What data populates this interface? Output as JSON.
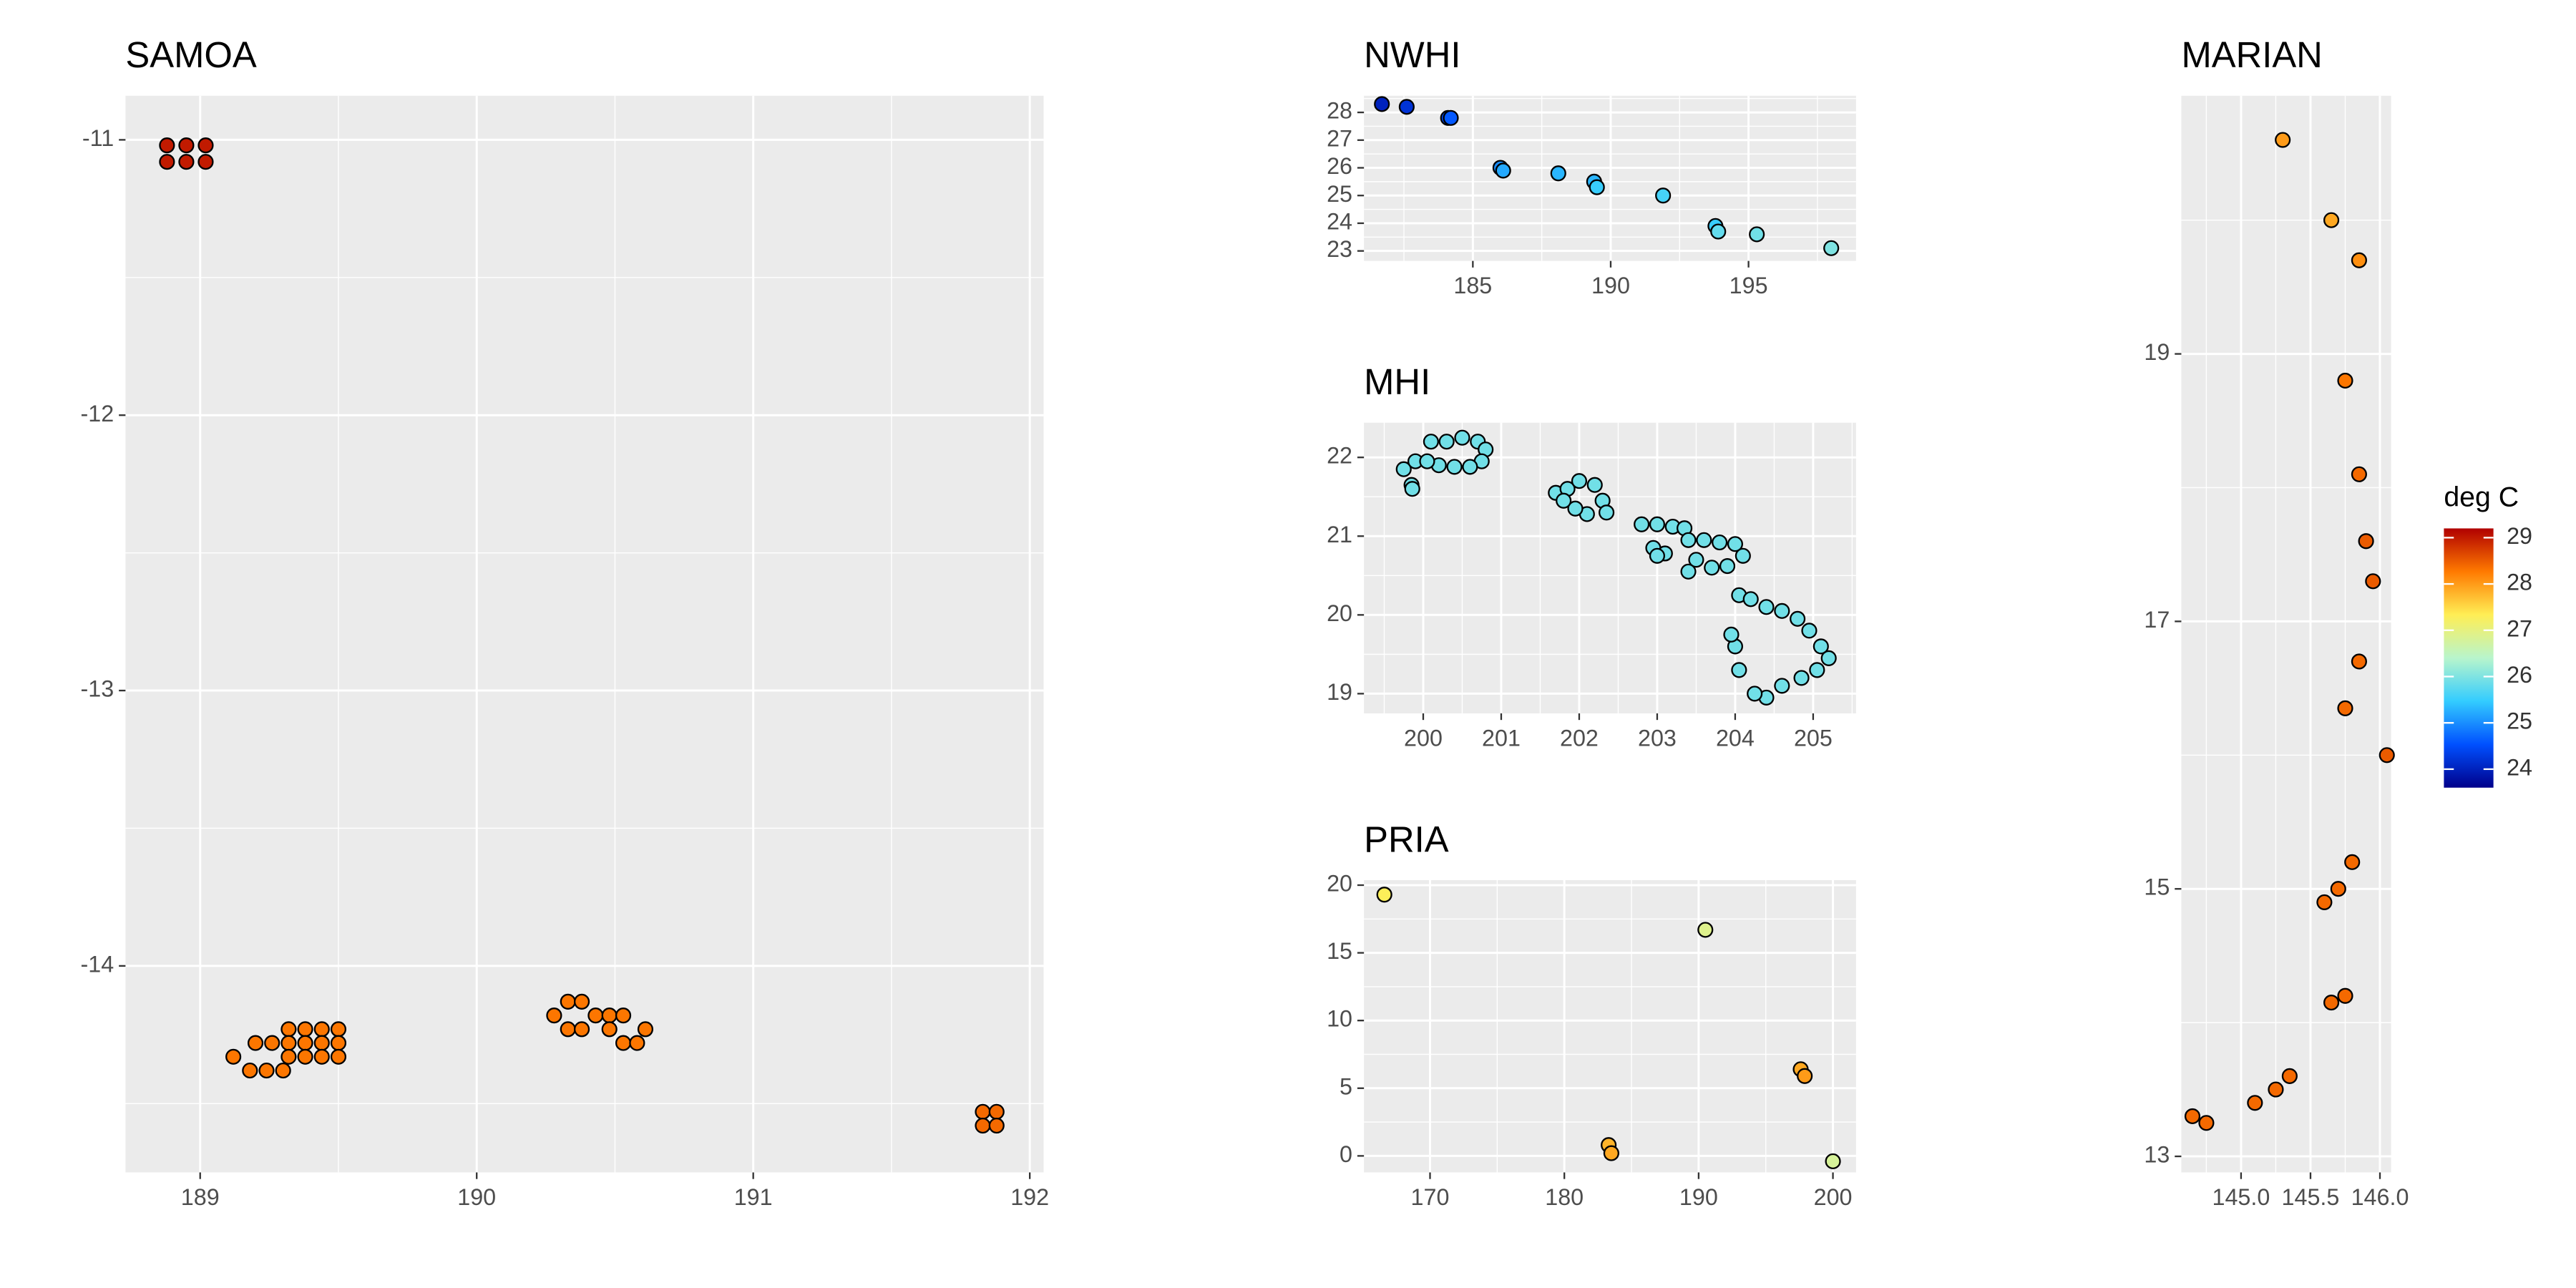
{
  "chart_data": [
    {
      "type": "scatter",
      "title": "SAMOA",
      "x": [
        188.88,
        188.95,
        189.02,
        188.88,
        188.95,
        189.02,
        189.32,
        189.38,
        189.44,
        189.5,
        189.2,
        189.26,
        189.32,
        189.38,
        189.44,
        189.5,
        189.12,
        189.32,
        189.38,
        189.44,
        189.5,
        189.18,
        189.24,
        189.3,
        190.33,
        190.38,
        190.28,
        190.43,
        190.48,
        190.53,
        190.33,
        190.38,
        190.48,
        190.61,
        190.53,
        190.58,
        191.83,
        191.88,
        191.83,
        191.88
      ],
      "y": [
        -11.02,
        -11.02,
        -11.02,
        -11.08,
        -11.08,
        -11.08,
        -14.23,
        -14.23,
        -14.23,
        -14.23,
        -14.28,
        -14.28,
        -14.28,
        -14.28,
        -14.28,
        -14.28,
        -14.33,
        -14.33,
        -14.33,
        -14.33,
        -14.33,
        -14.38,
        -14.38,
        -14.38,
        -14.13,
        -14.13,
        -14.18,
        -14.18,
        -14.18,
        -14.18,
        -14.23,
        -14.23,
        -14.23,
        -14.23,
        -14.28,
        -14.28,
        -14.53,
        -14.53,
        -14.58,
        -14.58
      ],
      "temp": [
        29.0,
        29.0,
        29.0,
        29.0,
        29.0,
        29.0,
        28.3,
        28.3,
        28.3,
        28.3,
        28.3,
        28.3,
        28.3,
        28.3,
        28.3,
        28.3,
        28.3,
        28.3,
        28.3,
        28.3,
        28.3,
        28.3,
        28.3,
        28.3,
        28.3,
        28.3,
        28.3,
        28.3,
        28.3,
        28.3,
        28.3,
        28.3,
        28.3,
        28.3,
        28.3,
        28.3,
        28.4,
        28.4,
        28.4,
        28.4
      ],
      "xlim": [
        188.73,
        192.05
      ],
      "ylim": [
        -14.75,
        -10.84
      ],
      "xticks": [
        189,
        190,
        191,
        192
      ],
      "yticks": [
        -14,
        -13,
        -12,
        -11
      ],
      "grid": true
    },
    {
      "type": "scatter",
      "title": "NWHI",
      "x": [
        181.7,
        182.6,
        184.1,
        184.2,
        186.0,
        186.1,
        188.1,
        189.4,
        189.5,
        191.9,
        193.8,
        193.9,
        195.3,
        198.0
      ],
      "y": [
        28.3,
        28.2,
        27.8,
        27.8,
        26.0,
        25.9,
        25.8,
        25.5,
        25.3,
        25.0,
        23.9,
        23.7,
        23.6,
        23.1
      ],
      "temp": [
        24.0,
        24.2,
        24.5,
        24.6,
        25.0,
        25.2,
        25.3,
        25.3,
        25.5,
        25.6,
        25.5,
        25.8,
        25.9,
        26.0
      ],
      "xlim": [
        181.05,
        198.9
      ],
      "ylim": [
        22.64,
        28.6
      ],
      "xticks": [
        185,
        190,
        195
      ],
      "yticks": [
        23,
        24,
        25,
        26,
        27,
        28
      ],
      "grid": true
    },
    {
      "type": "scatter",
      "title": "MHI",
      "x": [
        199.85,
        199.86,
        199.75,
        199.9,
        200.1,
        200.3,
        200.5,
        200.7,
        200.8,
        200.75,
        200.6,
        200.4,
        200.2,
        200.05,
        201.7,
        201.85,
        202.0,
        202.2,
        202.3,
        202.35,
        202.1,
        201.95,
        201.8,
        202.8,
        203.0,
        203.2,
        203.35,
        202.95,
        203.1,
        203.0,
        203.4,
        203.6,
        203.8,
        204.0,
        204.1,
        203.9,
        203.7,
        203.5,
        203.4,
        204.05,
        204.2,
        204.4,
        204.6,
        204.8,
        204.95,
        205.1,
        205.2,
        205.05,
        204.85,
        204.6,
        204.4,
        204.25,
        204.05,
        204.0,
        203.95
      ],
      "y": [
        21.65,
        21.6,
        21.85,
        21.95,
        22.2,
        22.2,
        22.25,
        22.2,
        22.1,
        21.95,
        21.88,
        21.88,
        21.9,
        21.95,
        21.55,
        21.6,
        21.7,
        21.65,
        21.45,
        21.3,
        21.28,
        21.35,
        21.45,
        21.15,
        21.15,
        21.12,
        21.1,
        20.85,
        20.78,
        20.75,
        20.95,
        20.95,
        20.92,
        20.9,
        20.75,
        20.62,
        20.6,
        20.7,
        20.55,
        20.25,
        20.2,
        20.1,
        20.05,
        19.95,
        19.8,
        19.6,
        19.45,
        19.3,
        19.2,
        19.1,
        18.95,
        19.0,
        19.3,
        19.6,
        19.75
      ],
      "temp": [
        25.9,
        25.9,
        25.9,
        25.9,
        25.9,
        25.9,
        25.9,
        25.9,
        25.9,
        25.9,
        25.9,
        25.9,
        25.9,
        25.9,
        25.9,
        25.9,
        25.9,
        25.9,
        25.9,
        25.9,
        25.9,
        25.9,
        25.9,
        25.9,
        25.9,
        25.9,
        25.9,
        25.9,
        25.9,
        25.9,
        25.9,
        25.9,
        25.9,
        25.9,
        25.9,
        25.9,
        25.9,
        25.9,
        25.9,
        25.9,
        25.9,
        25.9,
        25.9,
        25.9,
        25.9,
        25.9,
        25.9,
        25.9,
        25.9,
        25.9,
        25.9,
        25.9,
        25.9,
        25.9,
        25.9
      ],
      "xlim": [
        199.24,
        205.55
      ],
      "ylim": [
        18.75,
        22.44
      ],
      "xticks": [
        200,
        201,
        202,
        203,
        204,
        205
      ],
      "yticks": [
        19,
        20,
        21,
        22
      ],
      "grid": true
    },
    {
      "type": "scatter",
      "title": "PRIA",
      "x": [
        166.6,
        190.5,
        183.3,
        183.5,
        197.6,
        197.9,
        200.0
      ],
      "y": [
        19.3,
        16.7,
        0.8,
        0.2,
        6.4,
        5.9,
        -0.4
      ],
      "temp": [
        27.3,
        26.9,
        27.8,
        27.9,
        27.9,
        28.0,
        26.8
      ],
      "xlim": [
        165.08,
        201.72
      ],
      "ylim": [
        -1.22,
        20.37
      ],
      "xticks": [
        170,
        180,
        190,
        200
      ],
      "yticks": [
        0,
        5,
        10,
        15,
        20
      ],
      "grid": true
    },
    {
      "type": "scatter",
      "title": "MARIAN",
      "x": [
        145.3,
        145.65,
        145.85,
        145.75,
        145.85,
        145.9,
        145.95,
        145.85,
        145.75,
        146.05,
        145.8,
        145.7,
        145.6,
        145.65,
        145.75,
        145.35,
        145.25,
        145.1,
        144.65,
        144.75
      ],
      "y": [
        20.6,
        20.0,
        19.7,
        18.8,
        18.1,
        17.6,
        17.3,
        16.7,
        16.35,
        16.0,
        15.2,
        15.0,
        14.9,
        14.15,
        14.2,
        13.6,
        13.5,
        13.4,
        13.3,
        13.25
      ],
      "temp": [
        28.0,
        27.9,
        28.1,
        28.3,
        28.4,
        28.5,
        28.5,
        28.4,
        28.4,
        28.5,
        28.4,
        28.4,
        28.4,
        28.4,
        28.4,
        28.4,
        28.4,
        28.4,
        28.4,
        28.4
      ],
      "xlim": [
        144.57,
        146.08
      ],
      "ylim": [
        12.88,
        20.93
      ],
      "xticks": [
        {
          "value": 145,
          "label": "145.0"
        },
        {
          "value": 145.5,
          "label": "145.5"
        },
        {
          "value": 146,
          "label": "146.0"
        }
      ],
      "yticks": [
        13,
        15,
        17,
        19
      ],
      "grid": true
    },
    {
      "type": "colorbar",
      "title": "deg C",
      "lim": [
        23.6,
        29.2
      ],
      "ticks": [
        24,
        25,
        26,
        27,
        28,
        29
      ],
      "colors": [
        "#00008b",
        "#0050ff",
        "#33ccff",
        "#b8f5cc",
        "#ffee55",
        "#ff7a00",
        "#b00000"
      ]
    }
  ]
}
